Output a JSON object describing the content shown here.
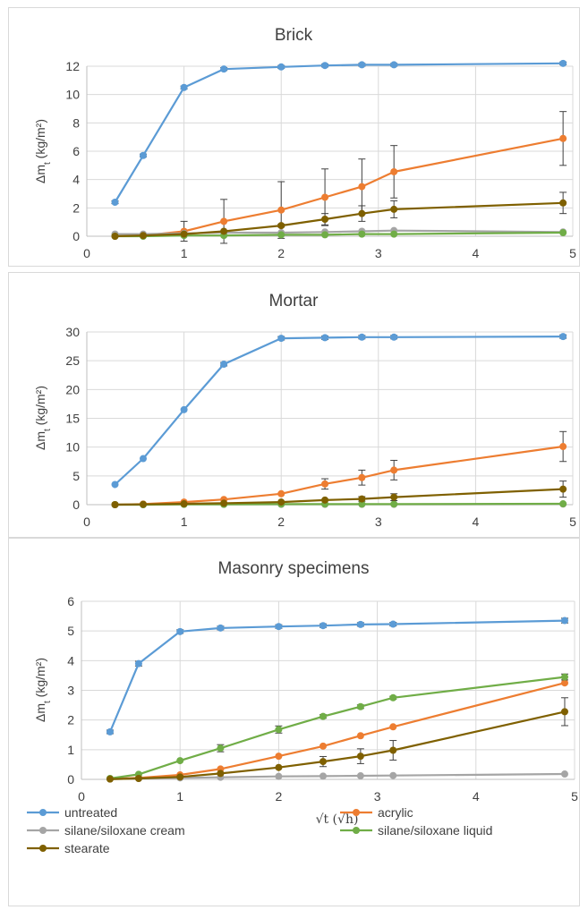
{
  "chart_data": [
    {
      "type": "line",
      "title": "Brick",
      "ylabel": "Δm_t (kg/m²)",
      "xlabel": "",
      "xlim": [
        0,
        5
      ],
      "ylim": [
        0,
        12
      ],
      "xticks": [
        "0",
        "1",
        "2",
        "3",
        "4",
        "5"
      ],
      "yticks": [
        "0",
        "2",
        "4",
        "6",
        "8",
        "10",
        "12"
      ],
      "x": [
        0.29,
        0.58,
        1.0,
        1.41,
        2.0,
        2.45,
        2.83,
        3.16,
        4.9
      ],
      "series": [
        {
          "name": "untreated",
          "color": "#5b9bd5",
          "values": [
            2.4,
            5.7,
            10.5,
            11.8,
            11.95,
            12.05,
            12.1,
            12.1,
            12.2
          ],
          "errors": [
            0.1,
            0.1,
            0.1,
            0.1,
            0.1,
            0.1,
            0.1,
            0.1,
            0.1
          ]
        },
        {
          "name": "acrylic",
          "color": "#ed7d31",
          "values": [
            0.0,
            0.05,
            0.35,
            1.05,
            1.85,
            2.75,
            3.5,
            4.55,
            6.9
          ],
          "errors": [
            0,
            0.05,
            0.7,
            1.55,
            2.0,
            2.0,
            1.95,
            1.85,
            1.9
          ]
        },
        {
          "name": "silane/siloxane cream",
          "color": "#a5a5a5",
          "values": [
            0.15,
            0.15,
            0.2,
            0.25,
            0.25,
            0.3,
            0.35,
            0.4,
            0.3
          ],
          "errors": [
            0,
            0,
            0,
            0,
            0,
            0,
            0,
            0,
            0
          ]
        },
        {
          "name": "silane/siloxane liquid",
          "color": "#70ad47",
          "values": [
            0.0,
            0.0,
            0.05,
            0.05,
            0.1,
            0.1,
            0.15,
            0.15,
            0.25
          ],
          "errors": [
            0,
            0,
            0,
            0,
            0,
            0,
            0,
            0,
            0
          ]
        },
        {
          "name": "stearate",
          "color": "#7f6000",
          "values": [
            0.0,
            0.05,
            0.15,
            0.35,
            0.75,
            1.2,
            1.6,
            1.9,
            2.35
          ],
          "errors": [
            0,
            0,
            0,
            0,
            0.1,
            0.4,
            0.55,
            0.6,
            0.75
          ]
        }
      ]
    },
    {
      "type": "line",
      "title": "Mortar",
      "ylabel": "Δm_t (kg/m²)",
      "xlabel": "",
      "xlim": [
        0,
        5
      ],
      "ylim": [
        0,
        30
      ],
      "xticks": [
        "0",
        "1",
        "2",
        "3",
        "4",
        "5"
      ],
      "yticks": [
        "0",
        "5",
        "10",
        "15",
        "20",
        "25",
        "30"
      ],
      "x": [
        0.29,
        0.58,
        1.0,
        1.41,
        2.0,
        2.45,
        2.83,
        3.16,
        4.9
      ],
      "series": [
        {
          "name": "untreated",
          "color": "#5b9bd5",
          "values": [
            3.5,
            8.0,
            16.5,
            24.4,
            28.9,
            29.0,
            29.1,
            29.1,
            29.2
          ],
          "errors": [
            0.2,
            0.2,
            0.2,
            0.3,
            0.3,
            0.3,
            0.3,
            0.3,
            0.3
          ]
        },
        {
          "name": "acrylic",
          "color": "#ed7d31",
          "values": [
            0.0,
            0.1,
            0.45,
            0.9,
            1.9,
            3.6,
            4.7,
            6.0,
            10.1
          ],
          "errors": [
            0,
            0,
            0,
            0,
            0,
            0.9,
            1.3,
            1.7,
            2.6
          ]
        },
        {
          "name": "silane/siloxane cream",
          "color": "#a5a5a5",
          "values": [
            0.0,
            0.0,
            0.05,
            0.05,
            0.05,
            0.05,
            0.05,
            0.05,
            0.1
          ],
          "errors": [
            0,
            0,
            0,
            0,
            0,
            0,
            0,
            0,
            0
          ]
        },
        {
          "name": "silane/siloxane liquid",
          "color": "#70ad47",
          "values": [
            0.0,
            0.0,
            0.05,
            0.05,
            0.1,
            0.1,
            0.1,
            0.1,
            0.15
          ],
          "errors": [
            0,
            0,
            0,
            0,
            0,
            0,
            0,
            0,
            0
          ]
        },
        {
          "name": "stearate",
          "color": "#7f6000",
          "values": [
            0.0,
            0.05,
            0.15,
            0.25,
            0.45,
            0.8,
            1.0,
            1.3,
            2.7
          ],
          "errors": [
            0,
            0,
            0,
            0,
            0,
            0.2,
            0.4,
            0.6,
            1.4
          ]
        }
      ]
    },
    {
      "type": "line",
      "title": "Masonry specimens",
      "ylabel": "Δm_t (kg/m²)",
      "xlabel": "√t (√h)",
      "xlim": [
        0,
        5
      ],
      "ylim": [
        0,
        6
      ],
      "xticks": [
        "0",
        "1",
        "2",
        "3",
        "4",
        "5"
      ],
      "yticks": [
        "0",
        "1",
        "2",
        "3",
        "4",
        "5",
        "6"
      ],
      "x": [
        0.29,
        0.58,
        1.0,
        1.41,
        2.0,
        2.45,
        2.83,
        3.16,
        4.9
      ],
      "series": [
        {
          "name": "untreated",
          "color": "#5b9bd5",
          "values": [
            1.6,
            3.9,
            4.98,
            5.1,
            5.15,
            5.18,
            5.22,
            5.23,
            5.35
          ],
          "errors": [
            0.06,
            0.08,
            0.06,
            0.06,
            0.06,
            0.06,
            0.06,
            0.06,
            0.08
          ]
        },
        {
          "name": "acrylic",
          "color": "#ed7d31",
          "values": [
            0.02,
            0.05,
            0.15,
            0.35,
            0.78,
            1.12,
            1.47,
            1.77,
            3.25
          ],
          "errors": [
            0,
            0,
            0,
            0,
            0,
            0,
            0,
            0,
            0
          ]
        },
        {
          "name": "silane/siloxane cream",
          "color": "#a5a5a5",
          "values": [
            0.01,
            0.03,
            0.05,
            0.07,
            0.1,
            0.11,
            0.12,
            0.13,
            0.18
          ],
          "errors": [
            0,
            0,
            0,
            0,
            0,
            0,
            0,
            0,
            0
          ]
        },
        {
          "name": "silane/siloxane liquid",
          "color": "#70ad47",
          "values": [
            0.03,
            0.17,
            0.63,
            1.05,
            1.68,
            2.12,
            2.45,
            2.75,
            3.45
          ],
          "errors": [
            0,
            0,
            0,
            0.12,
            0.12,
            0.06,
            0.06,
            0.05,
            0.1
          ]
        },
        {
          "name": "stearate",
          "color": "#7f6000",
          "values": [
            0.01,
            0.03,
            0.08,
            0.2,
            0.4,
            0.6,
            0.78,
            0.98,
            2.28
          ],
          "errors": [
            0,
            0,
            0,
            0,
            0,
            0.17,
            0.25,
            0.33,
            0.47
          ]
        }
      ]
    }
  ],
  "legend": {
    "placement": "bottom",
    "items": [
      {
        "label": "untreated",
        "color": "#5b9bd5"
      },
      {
        "label": "acrylic",
        "color": "#ed7d31"
      },
      {
        "label": "silane/siloxane cream",
        "color": "#a5a5a5"
      },
      {
        "label": "silane/siloxane liquid",
        "color": "#70ad47"
      },
      {
        "label": "stearate",
        "color": "#7f6000"
      }
    ]
  }
}
